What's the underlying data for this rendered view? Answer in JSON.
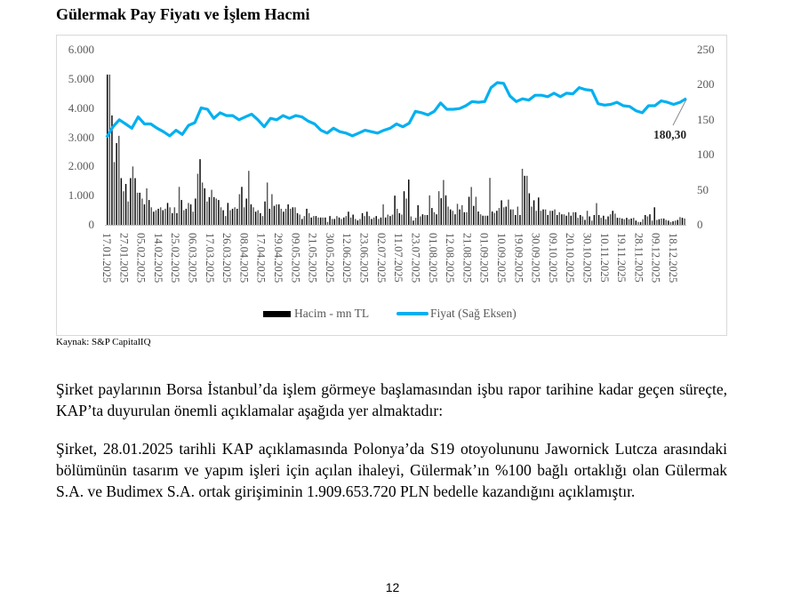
{
  "title": "Gülermak Pay Fiyatı ve İşlem Hacmi",
  "source": "Kaynak: S&P CapitalIQ",
  "paragraphs": [
    "Şirket paylarının Borsa İstanbul’da işlem görmeye başlamasından işbu rapor tarihine kadar geçen süreçte, KAP’ta duyurulan önemli açıklamalar aşağıda yer almaktadır:",
    "Şirket, 28.01.2025 tarihli KAP açıklamasında Polonya’da S19 otoyolununu Jawornick Lutcza arasındaki bölümünün tasarım ve yapım işleri için açılan ihaleyi, Gülermak’ın %100 bağlı ortaklığı olan Gülermak S.A. ve Budimex S.A. ortak girişiminin 1.909.653.720 PLN bedelle kazandığını açıklamıştır."
  ],
  "page_number": "12",
  "chart_data": {
    "type": "bar+line",
    "title": "Gülermak Pay Fiyatı ve İşlem Hacmi",
    "legend_position": "bottom",
    "grid": false,
    "colors": {
      "volume": "#000000",
      "price": "#00b0f0"
    },
    "left_axis": {
      "ylim": [
        0,
        6000
      ],
      "tick_labels": [
        "0",
        "1.000",
        "2.000",
        "3.000",
        "4.000",
        "5.000",
        "6.000"
      ]
    },
    "right_axis": {
      "ylim": [
        0,
        250
      ],
      "tick_labels": [
        "0",
        "50",
        "100",
        "150",
        "200",
        "250"
      ]
    },
    "x_tick_labels": [
      "17.01.2025",
      "27.01.2025",
      "05.02.2025",
      "14.02.2025",
      "25.02.2025",
      "06.03.2025",
      "17.03.2025",
      "26.03.2025",
      "08.04.2025",
      "17.04.2025",
      "29.04.2025",
      "09.05.2025",
      "21.05.2025",
      "30.05.2025",
      "12.06.2025",
      "23.06.2025",
      "02.07.2025",
      "11.07.2025",
      "23.07.2025",
      "01.08.2025",
      "12.08.2025",
      "21.08.2025",
      "01.09.2025",
      "10.09.2025",
      "19.09.2025",
      "30.09.2025",
      "09.10.2025",
      "20.10.2025",
      "30.10.2025",
      "10.11.2025",
      "19.11.2025",
      "28.11.2025",
      "09.12.2025",
      "18.12.2025"
    ],
    "series": [
      {
        "name": "Hacim - mn TL",
        "type": "bar",
        "axis": "left",
        "values": [
          5150,
          5150,
          3750,
          2150,
          2800,
          3050,
          1600,
          1150,
          1400,
          800,
          1600,
          2000,
          1600,
          1100,
          1100,
          900,
          700,
          1250,
          850,
          600,
          450,
          500,
          550,
          600,
          500,
          550,
          750,
          600,
          400,
          600,
          400,
          1300,
          850,
          500,
          550,
          750,
          700,
          450,
          900,
          1750,
          2250,
          1450,
          1250,
          800,
          950,
          1200,
          950,
          900,
          850,
          600,
          500,
          300,
          750,
          500,
          550,
          600,
          550,
          1050,
          1300,
          600,
          900,
          1850,
          700,
          600,
          450,
          500,
          400,
          300,
          800,
          1450,
          550,
          1050,
          650,
          700,
          700,
          550,
          450,
          550,
          700,
          550,
          600,
          600,
          400,
          350,
          200,
          300,
          550,
          400,
          250,
          300,
          300,
          250,
          250,
          250,
          250,
          100,
          300,
          200,
          200,
          300,
          250,
          200,
          250,
          300,
          450,
          250,
          350,
          200,
          150,
          200,
          400,
          300,
          450,
          300,
          200,
          250,
          300,
          200,
          250,
          700,
          250,
          350,
          300,
          350,
          1000,
          550,
          400,
          350,
          1150,
          900,
          1550,
          288,
          144,
          240,
          672,
          288,
          360,
          336,
          336,
          1008,
          576,
          432,
          360,
          1152,
          912,
          1536,
          1008,
          624,
          528,
          480,
          360,
          720,
          528,
          672,
          432,
          432,
          960,
          1296,
          648,
          960,
          456,
          360,
          312,
          312,
          312,
          1608,
          456,
          408,
          480,
          576,
          840,
          600,
          624,
          864,
          528,
          528,
          336,
          624,
          336,
          1920,
          1680,
          1680,
          1080,
          624,
          840,
          480,
          936,
          480,
          528,
          528,
          336,
          480,
          480,
          528,
          336,
          432,
          360,
          360,
          312,
          432,
          312,
          432,
          432,
          240,
          336,
          288,
          168,
          480,
          288,
          144,
          336,
          744,
          336,
          240,
          312,
          192,
          288,
          360,
          480,
          384,
          240,
          240,
          216,
          192,
          240,
          192,
          216,
          240,
          144,
          96,
          96,
          192,
          336,
          288,
          360,
          144,
          600,
          168,
          192,
          216,
          216,
          168,
          144,
          96,
          120,
          144,
          168,
          264,
          240,
          216
        ]
      },
      {
        "name": "Fiyat (Sağ Eksen)",
        "type": "line",
        "axis": "right",
        "values": [
          125,
          140,
          150,
          144,
          138,
          154,
          144,
          144,
          138,
          133,
          127,
          135,
          129,
          142,
          146,
          167,
          165,
          152,
          160,
          156,
          156,
          150,
          154,
          158,
          150,
          140,
          152,
          150,
          156,
          152,
          156,
          154,
          148,
          144,
          135,
          131,
          138,
          133,
          131,
          127,
          131,
          135,
          133,
          131,
          135,
          138,
          144,
          140,
          145,
          162,
          160,
          157,
          162,
          174,
          165,
          165,
          166,
          170,
          176,
          175,
          176,
          196,
          203,
          202,
          184,
          176,
          180,
          178,
          185,
          185,
          183,
          188,
          183,
          188,
          187,
          196,
          193,
          192,
          173,
          171,
          172,
          175,
          170,
          169,
          163,
          160,
          170,
          170,
          177,
          175,
          172,
          175,
          180.3
        ]
      }
    ],
    "annotations": [
      "180,30"
    ]
  }
}
